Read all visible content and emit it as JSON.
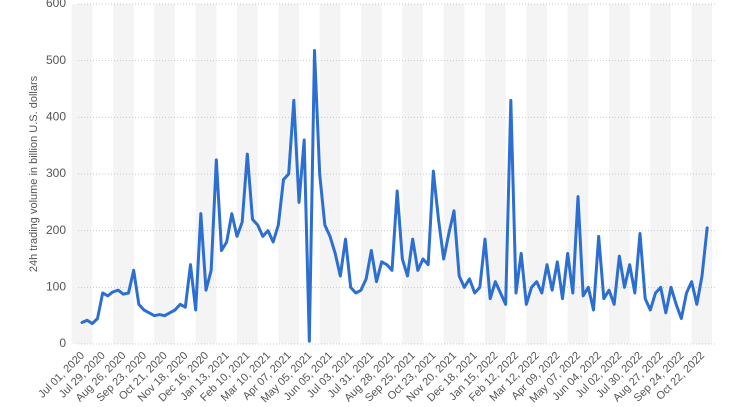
{
  "chart_data": {
    "type": "line",
    "y_label": "24h trading volume in billion U.S. dollars",
    "categories": [
      "Jul 01, 2020",
      null,
      null,
      null,
      "Jul 29, 2020",
      null,
      null,
      null,
      "Aug 26, 2020",
      null,
      null,
      null,
      "Sep 23, 2020",
      null,
      null,
      null,
      "Oct 21, 2020",
      null,
      null,
      null,
      "Nov 18, 2020",
      null,
      null,
      null,
      "Dec 16, 2020",
      null,
      null,
      null,
      "Jan 13, 2021",
      null,
      null,
      null,
      "Feb 10, 2021",
      null,
      null,
      null,
      "Mar 10, 2021",
      null,
      null,
      null,
      "Apr 07, 2021",
      null,
      null,
      null,
      "May 05, 2021",
      null,
      null,
      null,
      "Jun 05, 2021",
      null,
      null,
      null,
      "Jul 03, 2021",
      null,
      null,
      null,
      "Jul 31, 2021",
      null,
      null,
      null,
      "Aug 28, 2021",
      null,
      null,
      null,
      "Sep 25, 2021",
      null,
      null,
      null,
      "Oct 23, 2021",
      null,
      null,
      null,
      "Nov 20, 2021",
      null,
      null,
      null,
      "Dec 18, 2021",
      null,
      null,
      null,
      "Jan 15, 2022",
      null,
      null,
      null,
      "Feb 12, 2022",
      null,
      null,
      null,
      "Mar 12, 2022",
      null,
      null,
      null,
      "Apr 09, 2022",
      null,
      null,
      null,
      "May 07, 2022",
      null,
      null,
      null,
      "Jun 04, 2022",
      null,
      null,
      null,
      "Jul 02, 2022",
      null,
      null,
      null,
      "Jul 30, 2022",
      null,
      null,
      null,
      "Aug 27, 2022",
      null,
      null,
      null,
      "Sep 24, 2022",
      null,
      null,
      null,
      "Oct 22, 2022",
      null
    ],
    "values": [
      38,
      42,
      36,
      45,
      90,
      85,
      92,
      95,
      88,
      90,
      130,
      70,
      60,
      55,
      50,
      52,
      50,
      55,
      60,
      70,
      65,
      140,
      60,
      230,
      95,
      130,
      325,
      165,
      180,
      230,
      190,
      215,
      335,
      220,
      210,
      190,
      200,
      180,
      210,
      290,
      300,
      430,
      250,
      360,
      5,
      518,
      300,
      210,
      190,
      160,
      120,
      185,
      100,
      90,
      95,
      115,
      165,
      110,
      145,
      140,
      130,
      270,
      150,
      120,
      185,
      130,
      150,
      140,
      305,
      220,
      150,
      195,
      235,
      120,
      100,
      115,
      90,
      100,
      185,
      80,
      110,
      90,
      70,
      430,
      90,
      160,
      70,
      100,
      110,
      90,
      140,
      95,
      145,
      80,
      160,
      90,
      260,
      85,
      100,
      60,
      190,
      80,
      95,
      70,
      155,
      100,
      140,
      90,
      195,
      80,
      60,
      90,
      100,
      55,
      100,
      70,
      45,
      90,
      110,
      70,
      120,
      205
    ],
    "color": "#2c6fd1",
    "ylim": [
      0,
      600
    ],
    "yticks": [
      0,
      100,
      200,
      300,
      400,
      500,
      600
    ],
    "grid": true
  }
}
